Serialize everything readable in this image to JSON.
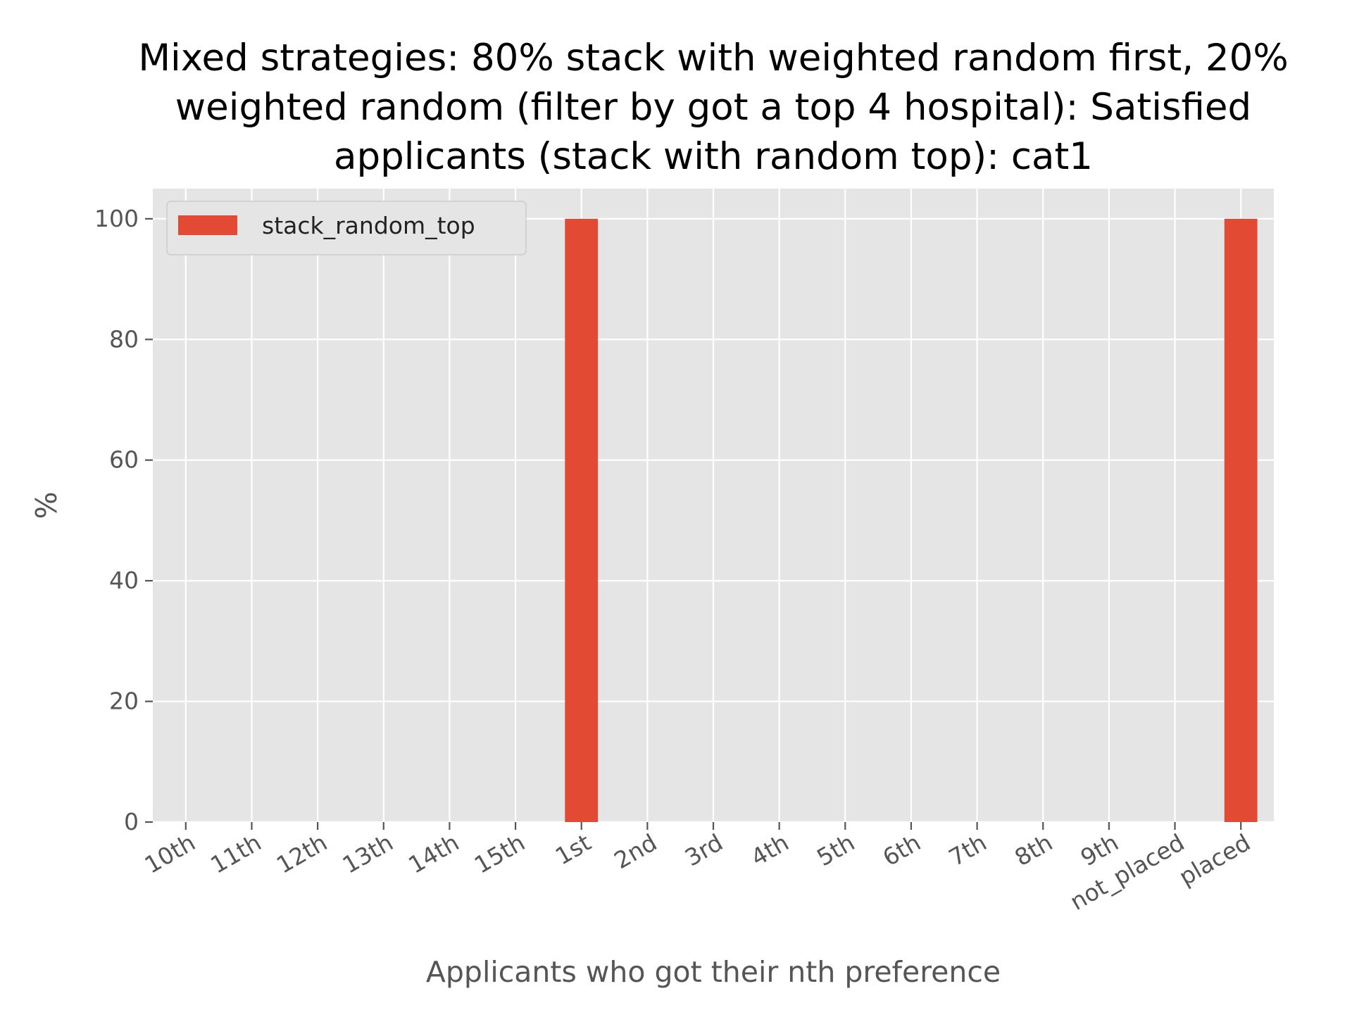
{
  "chart_data": {
    "type": "bar",
    "title_lines": [
      "Mixed strategies: 80% stack with weighted random first, 20%",
      "weighted random (filter by got a top 4 hospital): Satisfied",
      "applicants (stack with random top): cat1"
    ],
    "xlabel": "Applicants who got their nth preference",
    "ylabel": "%",
    "categories": [
      "10th",
      "11th",
      "12th",
      "13th",
      "14th",
      "15th",
      "1st",
      "2nd",
      "3rd",
      "4th",
      "5th",
      "6th",
      "7th",
      "8th",
      "9th",
      "not_placed",
      "placed"
    ],
    "series": [
      {
        "name": "stack_random_top",
        "color": "#E24A33",
        "values": [
          0,
          0,
          0,
          0,
          0,
          0,
          100,
          0,
          0,
          0,
          0,
          0,
          0,
          0,
          0,
          0,
          100
        ]
      }
    ],
    "ylim": [
      0,
      105
    ],
    "yticks": [
      0,
      20,
      40,
      60,
      80,
      100
    ],
    "grid": true,
    "legend_position": "top-left",
    "background_color": "#E5E5E5",
    "grid_color": "#FFFFFF"
  }
}
